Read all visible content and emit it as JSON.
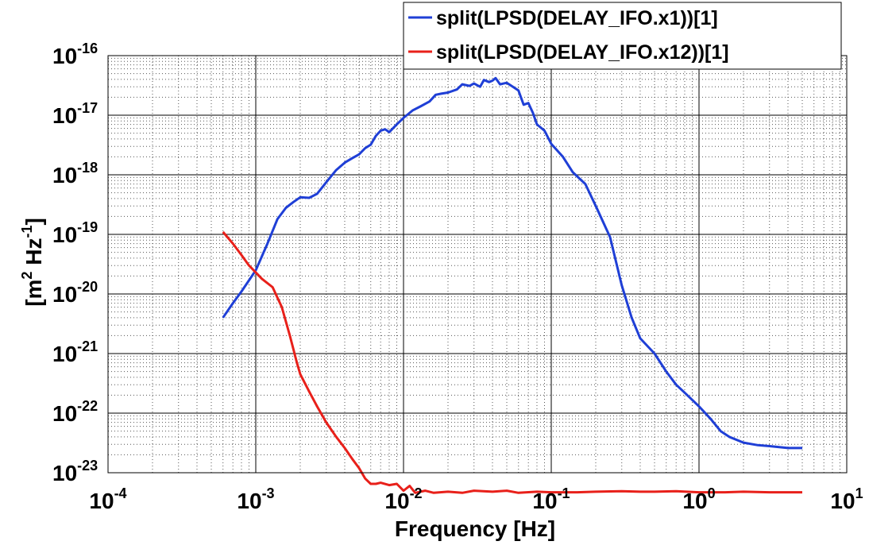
{
  "chart_data": {
    "type": "line",
    "xscale": "log",
    "yscale": "log",
    "xlabel": "Frequency  [Hz]",
    "ylabel_base": "[m",
    "ylabel_mid": " Hz",
    "ylabel_end": "]",
    "ylabel_sup1": "2",
    "ylabel_sup2": "-1",
    "xlim": [
      0.0001,
      10
    ],
    "ylim": [
      1e-23,
      1e-16
    ],
    "grid": true,
    "legend_position": "top-right",
    "x_ticks": [
      {
        "base": "10",
        "exp": "-4"
      },
      {
        "base": "10",
        "exp": "-3"
      },
      {
        "base": "10",
        "exp": "-2"
      },
      {
        "base": "10",
        "exp": "-1"
      },
      {
        "base": "10",
        "exp": "0"
      },
      {
        "base": "10",
        "exp": "1"
      }
    ],
    "y_ticks": [
      {
        "base": "10",
        "exp": "-23"
      },
      {
        "base": "10",
        "exp": "-22"
      },
      {
        "base": "10",
        "exp": "-21"
      },
      {
        "base": "10",
        "exp": "-20"
      },
      {
        "base": "10",
        "exp": "-19"
      },
      {
        "base": "10",
        "exp": "-18"
      },
      {
        "base": "10",
        "exp": "-17"
      },
      {
        "base": "10",
        "exp": "-16"
      }
    ],
    "series": [
      {
        "name": "split(LPSD(DELAY_IFO.x1))[1]",
        "color": "#1f3fd6",
        "x": [
          0.0006,
          0.0007,
          0.0008,
          0.001,
          0.0012,
          0.0014,
          0.0016,
          0.0018,
          0.002,
          0.0023,
          0.0026,
          0.003,
          0.0035,
          0.004,
          0.0045,
          0.005,
          0.0055,
          0.006,
          0.0065,
          0.007,
          0.0075,
          0.008,
          0.009,
          0.01,
          0.0115,
          0.013,
          0.015,
          0.0165,
          0.018,
          0.02,
          0.023,
          0.025,
          0.028,
          0.03,
          0.033,
          0.035,
          0.038,
          0.04,
          0.042,
          0.045,
          0.05,
          0.055,
          0.06,
          0.065,
          0.07,
          0.075,
          0.08,
          0.09,
          0.1,
          0.12,
          0.14,
          0.17,
          0.2,
          0.25,
          0.3,
          0.35,
          0.4,
          0.5,
          0.6,
          0.7,
          0.8,
          1.0,
          1.2,
          1.4,
          1.6,
          2.0,
          2.5,
          3.0,
          4.0,
          5.0
        ],
        "y": [
          4e-21,
          7e-21,
          1.1e-20,
          2.5e-20,
          7e-20,
          1.8e-19,
          2.8e-19,
          3.5e-19,
          4.2e-19,
          4.1e-19,
          4.8e-19,
          7.5e-19,
          1.2e-18,
          1.6e-18,
          1.9e-18,
          2.2e-18,
          2.8e-18,
          3.2e-18,
          4.5e-18,
          5.5e-18,
          5.8e-18,
          5.2e-18,
          7e-18,
          9e-18,
          1.2e-17,
          1.4e-17,
          1.7e-17,
          2.2e-17,
          2.3e-17,
          2.4e-17,
          2.7e-17,
          3.3e-17,
          3.1e-17,
          3.4e-17,
          3e-17,
          3.9e-17,
          3.6e-17,
          3.8e-17,
          4.2e-17,
          3.3e-17,
          3.5e-17,
          3e-17,
          2.6e-17,
          1.5e-17,
          1.6e-17,
          1.1e-17,
          7e-18,
          5.5e-18,
          3.3e-18,
          2e-18,
          1.1e-18,
          7e-19,
          3e-19,
          9e-20,
          1.4e-20,
          4e-21,
          1.8e-21,
          1e-21,
          5e-22,
          3e-22,
          2.2e-22,
          1.3e-22,
          8e-23,
          5e-23,
          4e-23,
          3.2e-23,
          2.9e-23,
          2.8e-23,
          2.6e-23,
          2.6e-23
        ]
      },
      {
        "name": "split(LPSD(DELAY_IFO.x12))[1]",
        "color": "#e8201a",
        "x": [
          0.0006,
          0.0007,
          0.0008,
          0.0009,
          0.001,
          0.0011,
          0.0013,
          0.0015,
          0.0017,
          0.0019,
          0.002,
          0.0023,
          0.0026,
          0.003,
          0.0035,
          0.004,
          0.0045,
          0.005,
          0.0055,
          0.006,
          0.0065,
          0.007,
          0.008,
          0.009,
          0.01,
          0.011,
          0.012,
          0.014,
          0.016,
          0.02,
          0.025,
          0.03,
          0.04,
          0.05,
          0.06,
          0.08,
          0.1,
          0.15,
          0.2,
          0.3,
          0.4,
          0.5,
          0.7,
          1.0,
          1.5,
          2.0,
          3.0,
          4.0,
          5.0
        ],
        "y": [
          1.1e-19,
          7e-20,
          4.5e-20,
          3e-20,
          2.3e-20,
          1.8e-20,
          1.3e-20,
          6e-21,
          2e-21,
          7e-22,
          4.5e-22,
          2.3e-22,
          1.3e-22,
          7e-23,
          4e-23,
          2.6e-23,
          1.7e-23,
          1.2e-23,
          8e-24,
          6.5e-24,
          6.5e-24,
          6.8e-24,
          6.2e-24,
          6.5e-24,
          5e-24,
          6e-24,
          4.6e-24,
          5e-24,
          4.6e-24,
          4.8e-24,
          4.6e-24,
          5e-24,
          4.8e-24,
          5e-24,
          4.6e-24,
          4.8e-24,
          4.7e-24,
          4.7e-24,
          4.8e-24,
          4.9e-24,
          4.8e-24,
          4.8e-24,
          4.9e-24,
          4.7e-24,
          4.7e-24,
          4.8e-24,
          4.7e-24,
          4.7e-24,
          4.7e-24
        ]
      }
    ]
  }
}
